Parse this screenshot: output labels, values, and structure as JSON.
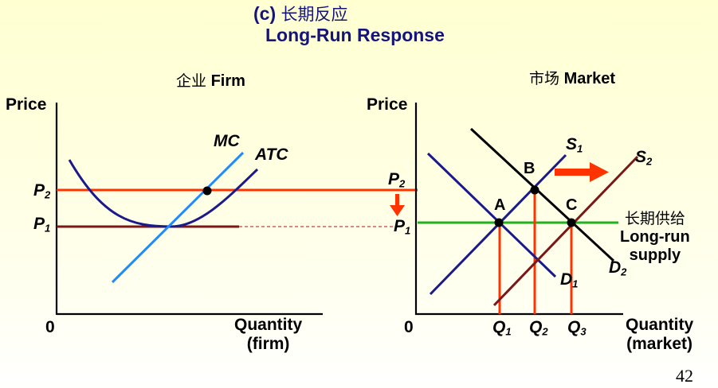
{
  "title": {
    "label": "(c)",
    "zh": "长期反应",
    "en": "Long-Run Response"
  },
  "firm": {
    "heading_zh": "企业",
    "heading_en": "Firm",
    "y_label": "Price",
    "origin": "0",
    "x_label_1": "Quantity",
    "x_label_2": "(firm)",
    "mc_label": "MC",
    "atc_label": "ATC",
    "p2": {
      "main": "P",
      "sub": "2"
    },
    "p1": {
      "main": "P",
      "sub": "1"
    }
  },
  "market": {
    "heading_zh": "市场",
    "heading_en": "Market",
    "y_label": "Price",
    "origin": "0",
    "x_label_1": "Quantity",
    "x_label_2": "(market)",
    "s1": {
      "main": "S",
      "sub": "1"
    },
    "s2": {
      "main": "S",
      "sub": "2"
    },
    "d1": {
      "main": "D",
      "sub": "1"
    },
    "d2": {
      "main": "D",
      "sub": "2"
    },
    "p2": {
      "main": "P",
      "sub": "2"
    },
    "p1": {
      "main": "P",
      "sub": "1"
    },
    "q1": {
      "main": "Q",
      "sub": "1"
    },
    "q2": {
      "main": "Q",
      "sub": "2"
    },
    "q3": {
      "main": "Q",
      "sub": "3"
    },
    "point_a": "A",
    "point_b": "B",
    "point_c": "C",
    "long_run_zh": "长期供给",
    "long_run_1": "Long-run",
    "long_run_2": "supply"
  },
  "page_number": "42",
  "colors": {
    "title": "#14147a",
    "red_line": "#ff3300",
    "orange_drop": "#ff3300",
    "blue_curve": "#1a1a8c",
    "light_blue": "#1e8cff",
    "maroon": "#7a1818",
    "green": "#20b020",
    "dashed": "#c04040"
  }
}
